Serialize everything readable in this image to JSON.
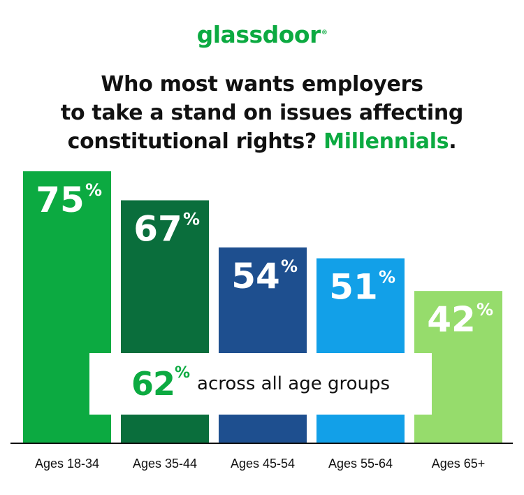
{
  "brand": {
    "name": "glassdoor",
    "reg_mark": "®"
  },
  "title": {
    "line1": "Who most wants employers",
    "line2": "to take a stand on issues affecting",
    "line3_prefix": "constitutional rights? ",
    "line3_highlight": "Millennials",
    "line3_suffix": "."
  },
  "overall": {
    "value": "62",
    "unit": "%",
    "text": "across all age groups"
  },
  "colors": {
    "brand_green": "#0caa41",
    "bars": [
      "#0caa41",
      "#0a6e3c",
      "#1e4f8f",
      "#12a0e8",
      "#96dc6c"
    ]
  },
  "chart_data": {
    "type": "bar",
    "categories": [
      "Ages 18-34",
      "Ages 35-44",
      "Ages 45-54",
      "Ages 55-64",
      "Ages 65+"
    ],
    "values": [
      75,
      67,
      54,
      51,
      42
    ],
    "unit": "%",
    "title": "Who most wants employers to take a stand on issues affecting constitutional rights? Millennials.",
    "xlabel": "",
    "ylabel": "",
    "ylim": [
      0,
      75
    ],
    "grid": false,
    "legend": "none"
  }
}
